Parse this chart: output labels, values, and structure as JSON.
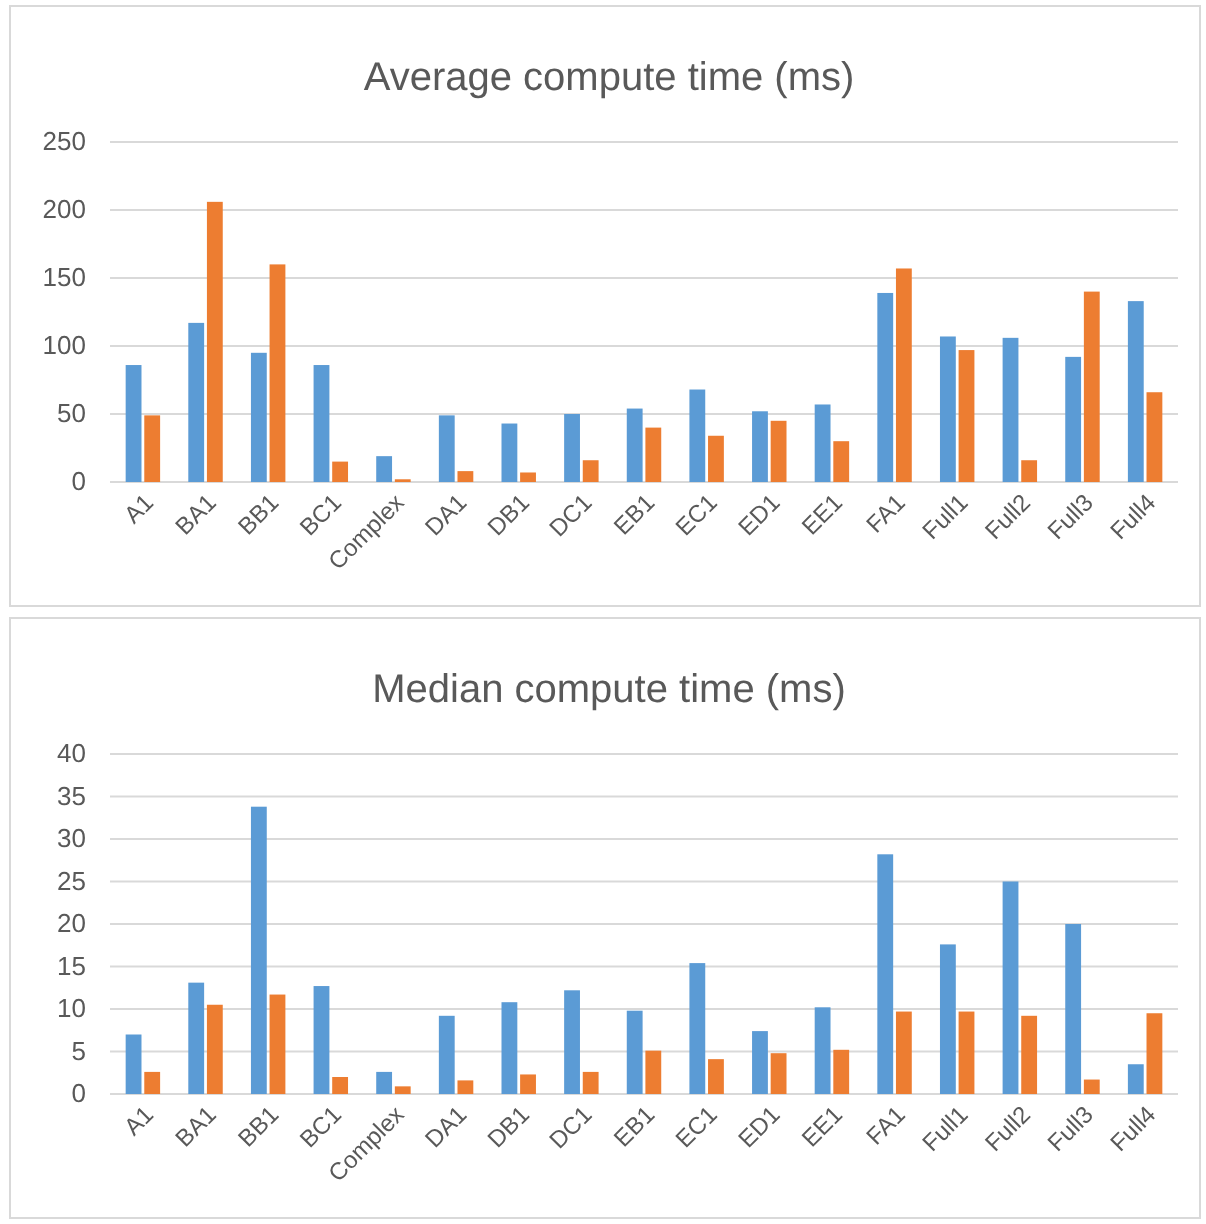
{
  "chart_data": [
    {
      "type": "bar",
      "title": "Average compute time (ms)",
      "categories": [
        "A1",
        "BA1",
        "BB1",
        "BC1",
        "Complex",
        "DA1",
        "DB1",
        "DC1",
        "EB1",
        "EC1",
        "ED1",
        "EE1",
        "FA1",
        "Full1",
        "Full2",
        "Full3",
        "Full4"
      ],
      "series": [
        {
          "color": "#5b9bd5",
          "values": [
            86,
            117,
            95,
            86,
            19,
            49,
            43,
            50,
            54,
            68,
            52,
            57,
            139,
            107,
            106,
            92,
            133
          ]
        },
        {
          "color": "#ed7d31",
          "values": [
            49,
            206,
            160,
            15,
            2,
            8,
            7,
            16,
            40,
            34,
            45,
            30,
            157,
            97,
            16,
            140,
            66
          ]
        }
      ],
      "ylim": [
        0,
        250
      ],
      "yticks": [
        0,
        50,
        100,
        150,
        200,
        250
      ],
      "grid": "y"
    },
    {
      "type": "bar",
      "title": "Median compute time (ms)",
      "categories": [
        "A1",
        "BA1",
        "BB1",
        "BC1",
        "Complex",
        "DA1",
        "DB1",
        "DC1",
        "EB1",
        "EC1",
        "ED1",
        "EE1",
        "FA1",
        "Full1",
        "Full2",
        "Full3",
        "Full4"
      ],
      "series": [
        {
          "color": "#5b9bd5",
          "values": [
            7,
            13.1,
            33.8,
            12.7,
            2.6,
            9.2,
            10.8,
            12.2,
            9.8,
            15.4,
            7.4,
            10.2,
            28.2,
            17.6,
            25,
            20,
            3.5
          ]
        },
        {
          "color": "#ed7d31",
          "values": [
            2.6,
            10.5,
            11.7,
            2,
            0.9,
            1.6,
            2.3,
            2.6,
            5.1,
            4.1,
            4.8,
            5.2,
            9.7,
            9.7,
            9.2,
            1.7,
            9.5
          ]
        }
      ],
      "ylim": [
        0,
        40
      ],
      "yticks": [
        0,
        5,
        10,
        15,
        20,
        25,
        30,
        35,
        40
      ],
      "grid": "y"
    }
  ]
}
